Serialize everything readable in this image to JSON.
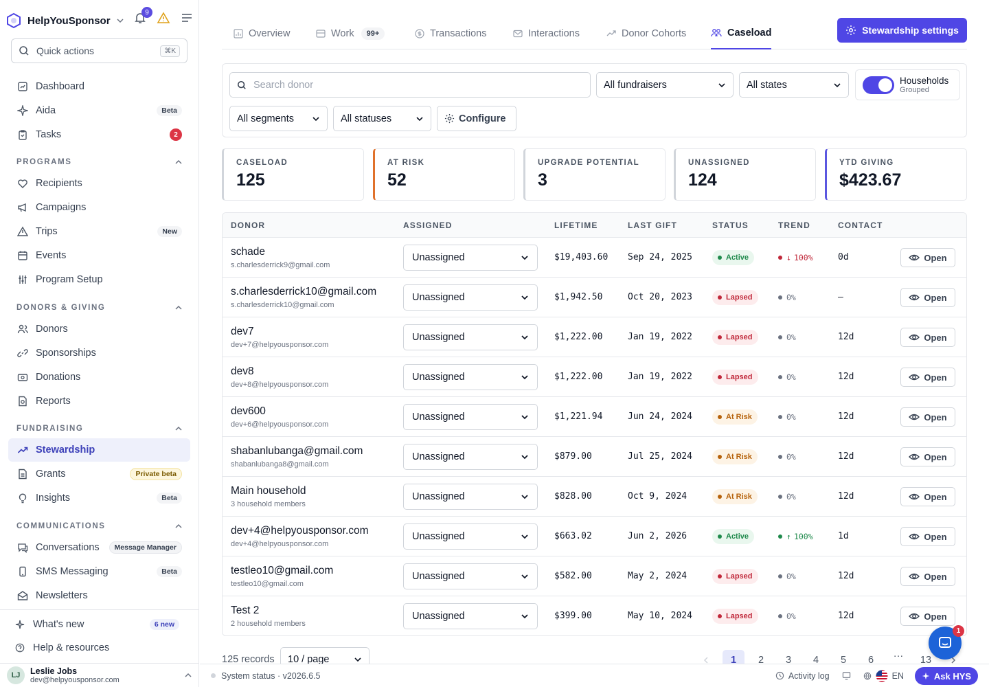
{
  "app": {
    "brand": "HelpYouSponsor",
    "notifications": "9"
  },
  "quick_actions": {
    "label": "Quick actions",
    "shortcut": "⌘K"
  },
  "nav": {
    "dashboard": "Dashboard",
    "aida": "Aida",
    "aida_badge": "Beta",
    "tasks": "Tasks",
    "tasks_count": "2",
    "programs_head": "PROGRAMS",
    "recipients": "Recipients",
    "campaigns": "Campaigns",
    "trips": "Trips",
    "trips_badge": "New",
    "events": "Events",
    "program_setup": "Program Setup",
    "donors_head": "DONORS & GIVING",
    "donors": "Donors",
    "sponsorships": "Sponsorships",
    "donations": "Donations",
    "reports": "Reports",
    "fundraising_head": "FUNDRAISING",
    "stewardship": "Stewardship",
    "grants": "Grants",
    "grants_badge": "Private beta",
    "insights": "Insights",
    "insights_badge": "Beta",
    "comms_head": "COMMUNICATIONS",
    "conversations": "Conversations",
    "conversations_badge": "Message Manager",
    "sms": "SMS Messaging",
    "sms_badge": "Beta",
    "newsletters": "Newsletters",
    "whats_new": "What's new",
    "whats_new_badge": "6 new",
    "help": "Help & resources"
  },
  "user": {
    "name": "Leslie Jobs",
    "email": "dev@helpyousponsor.com",
    "initials": "LJ"
  },
  "tabs": {
    "overview": "Overview",
    "work": "Work",
    "work_count": "99+",
    "transactions": "Transactions",
    "interactions": "Interactions",
    "cohorts": "Donor Cohorts",
    "caseload": "Caseload"
  },
  "stewardship_button": "Stewardship settings",
  "filters": {
    "search_placeholder": "Search donor",
    "fundraisers": "All fundraisers",
    "states": "All states",
    "households": "Households",
    "households_sub": "Grouped",
    "segments": "All segments",
    "statuses": "All statuses",
    "configure": "Configure"
  },
  "kpis": [
    {
      "label": "CASELOAD",
      "value": "125",
      "accent": "#d1d5db"
    },
    {
      "label": "AT RISK",
      "value": "52",
      "accent": "#e0712b"
    },
    {
      "label": "UPGRADE POTENTIAL",
      "value": "3",
      "accent": "#d1d5db"
    },
    {
      "label": "UNASSIGNED",
      "value": "124",
      "accent": "#d1d5db"
    },
    {
      "label": "YTD GIVING",
      "value": "$423.67",
      "accent": "#5b57e0"
    }
  ],
  "columns": {
    "donor": "DONOR",
    "assigned": "ASSIGNED",
    "lifetime": "LIFETIME",
    "last_gift": "LAST GIFT",
    "status": "STATUS",
    "trend": "TREND",
    "contact": "CONTACT"
  },
  "rows": [
    {
      "name": "schade",
      "sub": "s.charlesderrick9@gmail.com",
      "assigned": "Unassigned",
      "lifetime": "$19,403.60",
      "last_gift": "Sep 24, 2025",
      "status": "Active",
      "status_kind": "active",
      "trend": "100%",
      "trend_dir": "down",
      "contact": "0d",
      "action": "Open"
    },
    {
      "name": "s.charlesderrick10@gmail.com",
      "sub": "s.charlesderrick10@gmail.com",
      "assigned": "Unassigned",
      "lifetime": "$1,942.50",
      "last_gift": "Oct 20, 2023",
      "status": "Lapsed",
      "status_kind": "lapsed",
      "trend": "0%",
      "trend_dir": "flat",
      "contact": "—",
      "action": "Open"
    },
    {
      "name": "dev7",
      "sub": "dev+7@helpyousponsor.com",
      "assigned": "Unassigned",
      "lifetime": "$1,222.00",
      "last_gift": "Jan 19, 2022",
      "status": "Lapsed",
      "status_kind": "lapsed",
      "trend": "0%",
      "trend_dir": "flat",
      "contact": "12d",
      "action": "Open"
    },
    {
      "name": "dev8",
      "sub": "dev+8@helpyousponsor.com",
      "assigned": "Unassigned",
      "lifetime": "$1,222.00",
      "last_gift": "Jan 19, 2022",
      "status": "Lapsed",
      "status_kind": "lapsed",
      "trend": "0%",
      "trend_dir": "flat",
      "contact": "12d",
      "action": "Open"
    },
    {
      "name": "dev600",
      "sub": "dev+6@helpyousponsor.com",
      "assigned": "Unassigned",
      "lifetime": "$1,221.94",
      "last_gift": "Jun 24, 2024",
      "status": "At Risk",
      "status_kind": "risk",
      "trend": "0%",
      "trend_dir": "flat",
      "contact": "12d",
      "action": "Open"
    },
    {
      "name": "shabanlubanga@gmail.com",
      "sub": "shabanlubanga8@gmail.com",
      "assigned": "Unassigned",
      "lifetime": "$879.00",
      "last_gift": "Jul 25, 2024",
      "status": "At Risk",
      "status_kind": "risk",
      "trend": "0%",
      "trend_dir": "flat",
      "contact": "12d",
      "action": "Open"
    },
    {
      "name": "Main household",
      "sub": "3 household members",
      "assigned": "Unassigned",
      "lifetime": "$828.00",
      "last_gift": "Oct 9, 2024",
      "status": "At Risk",
      "status_kind": "risk",
      "trend": "0%",
      "trend_dir": "flat",
      "contact": "12d",
      "action": "Open"
    },
    {
      "name": "dev+4@helpyousponsor.com",
      "sub": "dev+4@helpyousponsor.com",
      "assigned": "Unassigned",
      "lifetime": "$663.02",
      "last_gift": "Jun 2, 2026",
      "status": "Active",
      "status_kind": "active",
      "trend": "100%",
      "trend_dir": "up",
      "contact": "1d",
      "action": "Open"
    },
    {
      "name": "testleo10@gmail.com",
      "sub": "testleo10@gmail.com",
      "assigned": "Unassigned",
      "lifetime": "$582.00",
      "last_gift": "May 2, 2024",
      "status": "Lapsed",
      "status_kind": "lapsed",
      "trend": "0%",
      "trend_dir": "flat",
      "contact": "12d",
      "action": "Open"
    },
    {
      "name": "Test 2",
      "sub": "2 household members",
      "assigned": "Unassigned",
      "lifetime": "$399.00",
      "last_gift": "May 10, 2024",
      "status": "Lapsed",
      "status_kind": "lapsed",
      "trend": "0%",
      "trend_dir": "flat",
      "contact": "12d",
      "action": "Open"
    }
  ],
  "pagination": {
    "records": "125 records",
    "per_page": "10 / page",
    "pages": [
      "1",
      "2",
      "3",
      "4",
      "5",
      "6"
    ],
    "ellipsis": "···",
    "last": "13",
    "current": "1"
  },
  "statusbar": {
    "system": "System status · v2026.6.5",
    "activity": "Activity log",
    "lang": "EN",
    "ask": "Ask HYS",
    "chat_count": "1"
  }
}
